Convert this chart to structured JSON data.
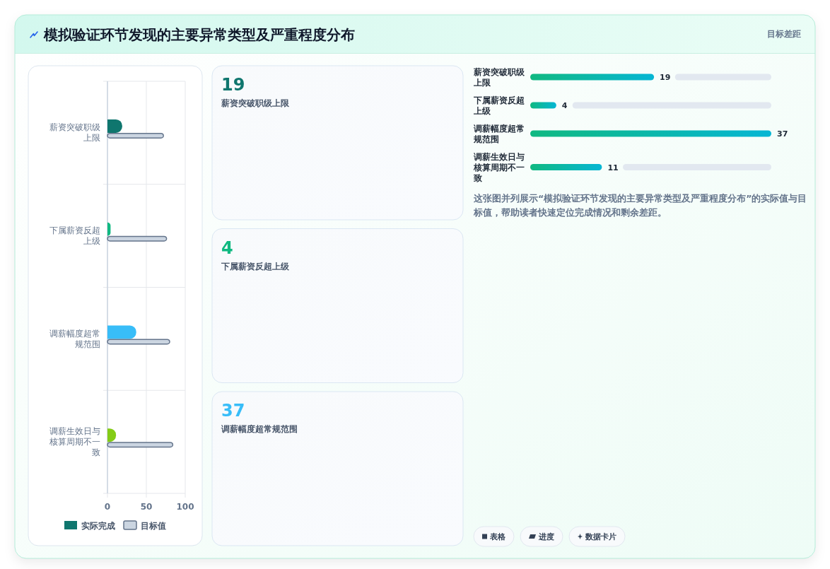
{
  "chart_data": [
    {
      "type": "bar",
      "orientation": "horizontal",
      "title": "模拟验证环节发现的主要异常类型及严重程度分布",
      "categories": [
        "薪资突破职级上限",
        "下属薪资反超上级",
        "调薪幅度超常规范围",
        "调薪生效日与核算周期不一致"
      ],
      "series": [
        {
          "name": "实际完成",
          "color": "#0f766e",
          "colors": [
            "#0f766e",
            "#10b981",
            "#38bdf8",
            "#84cc16"
          ],
          "values": [
            19,
            4,
            37,
            11
          ]
        },
        {
          "name": "目标值",
          "color": "#cbd5e1",
          "values": [
            72,
            76,
            80,
            84
          ]
        }
      ],
      "xlim": [
        0,
        100
      ],
      "xticks": [
        0,
        50,
        100
      ],
      "grid": true,
      "legend": "bottom"
    },
    {
      "type": "other",
      "categories": [
        "薪资突破职级上限",
        "下属薪资反超上级",
        "调薪幅度超常规范围"
      ],
      "values": [
        19,
        4,
        37
      ],
      "data_labels": true
    },
    {
      "type": "bar",
      "orientation": "horizontal",
      "title": "目标差距",
      "categories": [
        "薪资突破职级上限",
        "下属薪资反超上级",
        "调薪幅度超常规范围",
        "调薪生效日与核算周期不一致"
      ],
      "values": [
        19,
        4,
        37,
        11
      ],
      "data_labels": true,
      "color": "#10b981",
      "annotations": [
        "这张图并列展示“模拟验证环节发现的主要异常类型及严重程度分布”的实际值与目标值，帮助读者快速定位完成情况和剩余差距。",
        "表格",
        "进度",
        "数据卡片"
      ]
    }
  ]
}
